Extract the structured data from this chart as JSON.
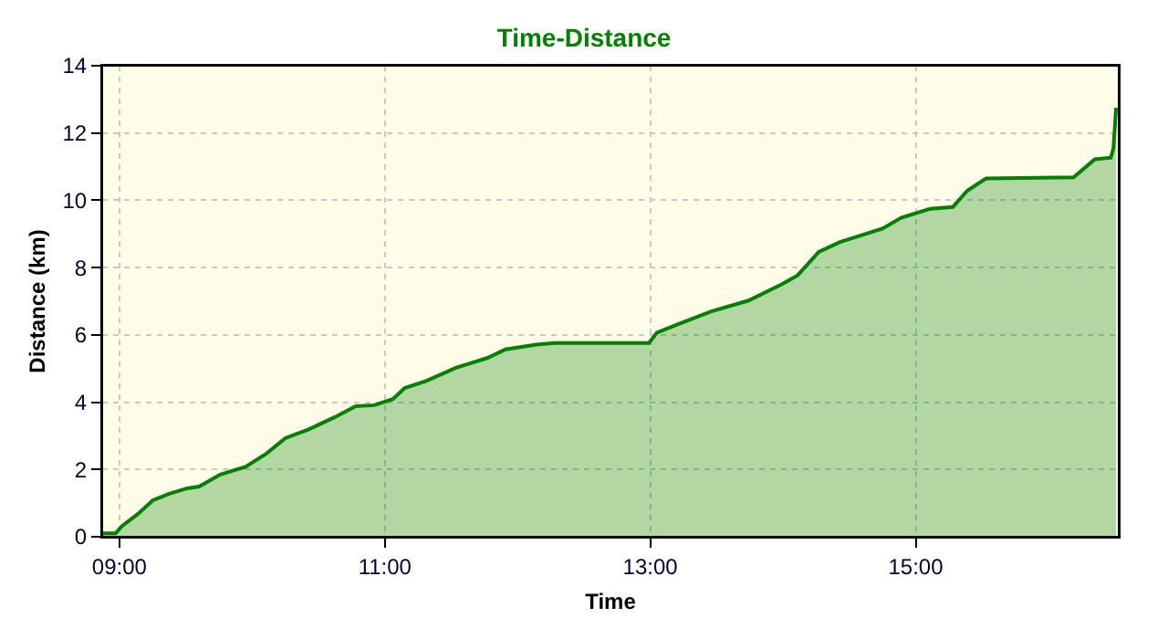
{
  "chart_data": {
    "type": "area",
    "title": "Time-Distance",
    "xlabel": "Time",
    "ylabel": "Distance (km)",
    "x": [
      8.87,
      8.97,
      9.02,
      9.14,
      9.25,
      9.37,
      9.51,
      9.6,
      9.76,
      9.95,
      10.11,
      10.25,
      10.43,
      10.62,
      10.78,
      10.92,
      11.06,
      11.15,
      11.31,
      11.54,
      11.77,
      11.91,
      12.14,
      12.28,
      12.99,
      13.05,
      13.21,
      13.46,
      13.74,
      13.99,
      14.11,
      14.27,
      14.43,
      14.75,
      14.89,
      15.11,
      15.28,
      15.39,
      15.53,
      16.19,
      16.35,
      16.47,
      16.49,
      16.51
    ],
    "series": [
      {
        "color": "#008000",
        "values": [
          0.1,
          0.1,
          0.32,
          0.68,
          1.08,
          1.27,
          1.44,
          1.49,
          1.85,
          2.08,
          2.48,
          2.93,
          3.2,
          3.55,
          3.88,
          3.91,
          4.09,
          4.42,
          4.63,
          5.03,
          5.31,
          5.57,
          5.71,
          5.76,
          5.76,
          6.07,
          6.32,
          6.7,
          7.02,
          7.5,
          7.77,
          8.47,
          8.76,
          9.16,
          9.48,
          9.75,
          9.8,
          10.29,
          10.65,
          10.68,
          11.22,
          11.27,
          11.54,
          12.75
        ]
      }
    ],
    "xlim": [
      8.87,
      16.53
    ],
    "xticks": [
      {
        "value": 9,
        "label": "09:00"
      },
      {
        "value": 11,
        "label": "11:00"
      },
      {
        "value": 13,
        "label": "13:00"
      },
      {
        "value": 15,
        "label": "15:00"
      }
    ],
    "ylim": [
      0,
      14
    ],
    "yticks": [
      0,
      2,
      4,
      6,
      8,
      10,
      12,
      14
    ],
    "grid": true
  }
}
